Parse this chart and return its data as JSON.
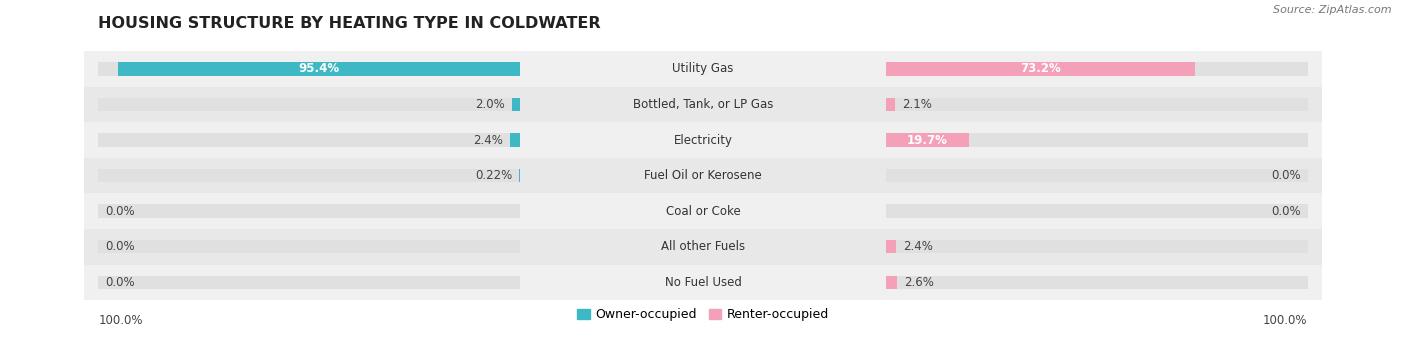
{
  "title": "HOUSING STRUCTURE BY HEATING TYPE IN COLDWATER",
  "source": "Source: ZipAtlas.com",
  "categories": [
    "Utility Gas",
    "Bottled, Tank, or LP Gas",
    "Electricity",
    "Fuel Oil or Kerosene",
    "Coal or Coke",
    "All other Fuels",
    "No Fuel Used"
  ],
  "owner_values": [
    95.4,
    2.0,
    2.4,
    0.22,
    0.0,
    0.0,
    0.0
  ],
  "renter_values": [
    73.2,
    2.1,
    19.7,
    0.0,
    0.0,
    2.4,
    2.6
  ],
  "owner_color": "#3db8c4",
  "renter_color": "#f4a0b8",
  "owner_label": "Owner-occupied",
  "renter_label": "Renter-occupied",
  "bar_bg_color": "#e0e0e0",
  "row_bg_even": "#f0f0f0",
  "row_bg_odd": "#e8e8e8",
  "max_value": 100.0,
  "title_fontsize": 11.5,
  "cat_fontsize": 8.5,
  "val_fontsize": 8.5,
  "source_fontsize": 8,
  "legend_fontsize": 9
}
